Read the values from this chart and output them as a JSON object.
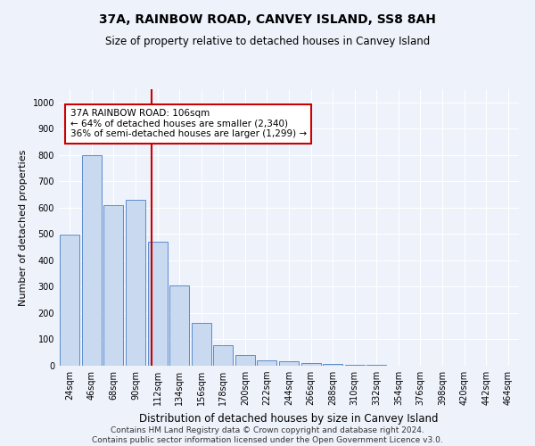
{
  "title": "37A, RAINBOW ROAD, CANVEY ISLAND, SS8 8AH",
  "subtitle": "Size of property relative to detached houses in Canvey Island",
  "xlabel": "Distribution of detached houses by size in Canvey Island",
  "ylabel": "Number of detached properties",
  "categories": [
    "24sqm",
    "46sqm",
    "68sqm",
    "90sqm",
    "112sqm",
    "134sqm",
    "156sqm",
    "178sqm",
    "200sqm",
    "222sqm",
    "244sqm",
    "266sqm",
    "288sqm",
    "310sqm",
    "332sqm",
    "354sqm",
    "376sqm",
    "398sqm",
    "420sqm",
    "442sqm",
    "464sqm"
  ],
  "values": [
    497,
    800,
    610,
    630,
    470,
    305,
    163,
    77,
    42,
    20,
    16,
    10,
    8,
    3,
    2,
    1,
    1,
    0,
    0,
    0,
    0
  ],
  "bar_color": "#c9d9f0",
  "bar_edge_color": "#5b8ccc",
  "marker_line_color": "#cc0000",
  "ylim": [
    0,
    1050
  ],
  "yticks": [
    0,
    100,
    200,
    300,
    400,
    500,
    600,
    700,
    800,
    900,
    1000
  ],
  "annotation_text": "37A RAINBOW ROAD: 106sqm\n← 64% of detached houses are smaller (2,340)\n36% of semi-detached houses are larger (1,299) →",
  "annotation_box_color": "#ffffff",
  "annotation_box_edge_color": "#cc0000",
  "footer_line1": "Contains HM Land Registry data © Crown copyright and database right 2024.",
  "footer_line2": "Contains public sector information licensed under the Open Government Licence v3.0.",
  "background_color": "#eef2fb",
  "plot_background_color": "#eef2fb",
  "title_fontsize": 10,
  "subtitle_fontsize": 8.5,
  "ylabel_fontsize": 8,
  "xlabel_fontsize": 8.5,
  "tick_fontsize": 7,
  "footer_fontsize": 6.5,
  "annotation_fontsize": 7.5
}
